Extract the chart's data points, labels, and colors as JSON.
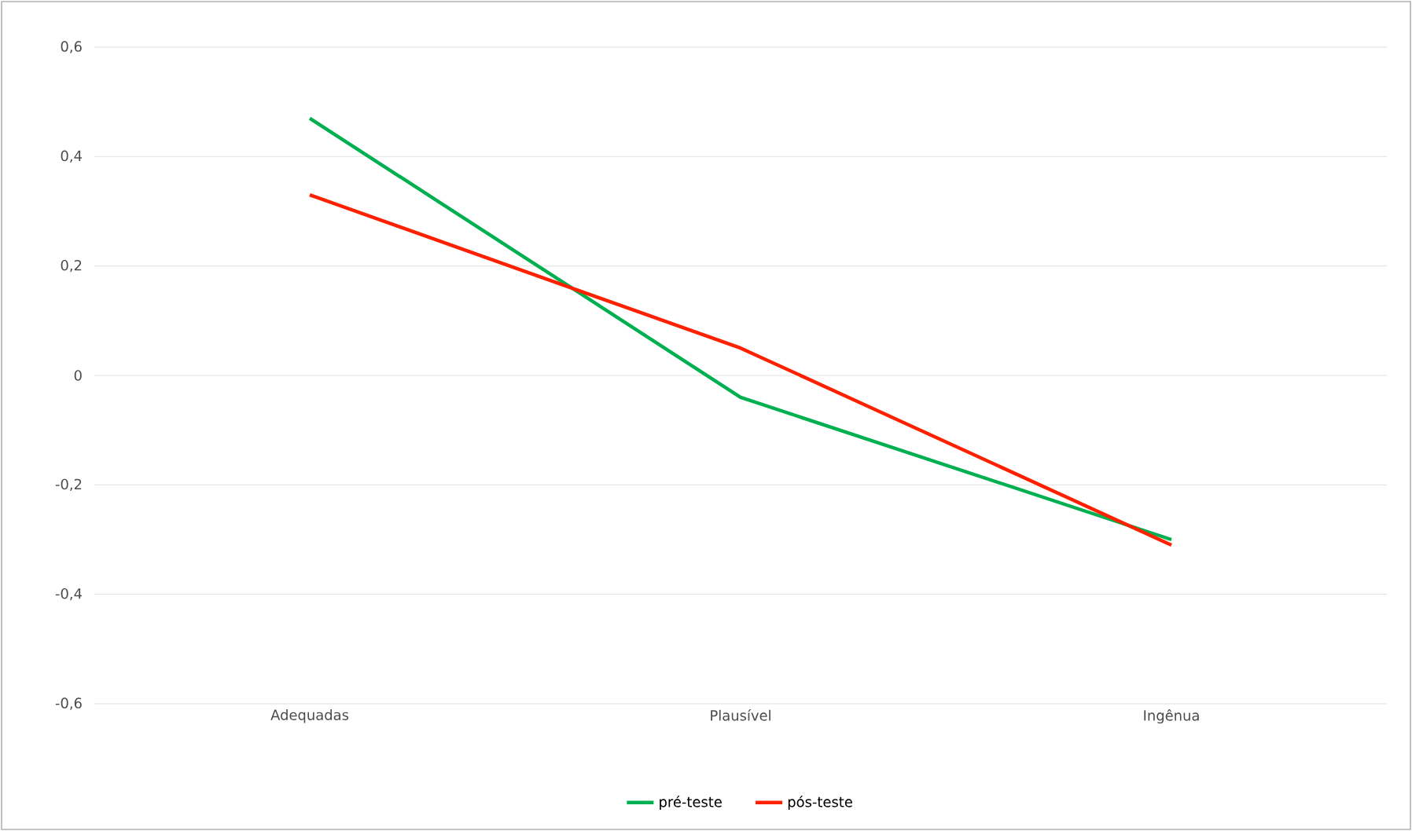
{
  "chart_data": {
    "type": "line",
    "categories": [
      "Adequadas",
      "Plausível",
      "Ingênua"
    ],
    "series": [
      {
        "name": "pré-teste",
        "color": "#00b050",
        "values": [
          0.47,
          -0.04,
          -0.3
        ]
      },
      {
        "name": "pós-teste",
        "color": "#ff2000",
        "values": [
          0.33,
          0.05,
          -0.31
        ]
      }
    ],
    "ylim": [
      -0.6,
      0.6
    ],
    "yticks": [
      {
        "value": -0.6,
        "label": "-0,6"
      },
      {
        "value": -0.4,
        "label": "-0,4"
      },
      {
        "value": -0.2,
        "label": "-0,2"
      },
      {
        "value": 0,
        "label": "0"
      },
      {
        "value": 0.2,
        "label": "0,2"
      },
      {
        "value": 0.4,
        "label": "0,4"
      },
      {
        "value": 0.6,
        "label": "0,6"
      }
    ],
    "grid": "y",
    "legend": "bottom",
    "marker": "none",
    "line_style": "solid"
  }
}
